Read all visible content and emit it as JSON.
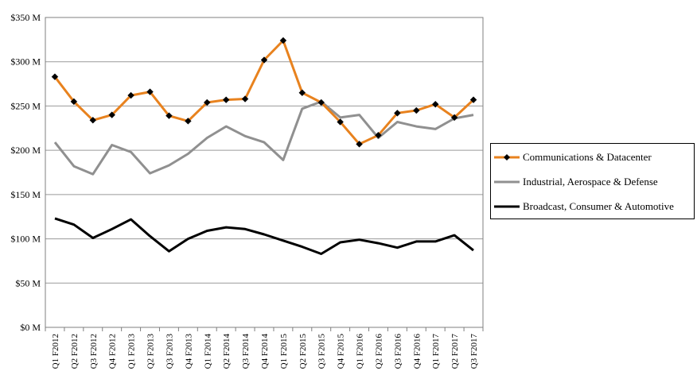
{
  "chart_data": {
    "type": "line",
    "title": "",
    "xlabel": "",
    "ylabel": "",
    "ylim": [
      0,
      350
    ],
    "y_ticks": [
      "$0 M",
      "$50 M",
      "$100 M",
      "$150 M",
      "$200 M",
      "$250 M",
      "$300 M",
      "$350 M"
    ],
    "y_tick_values": [
      0,
      50,
      100,
      150,
      200,
      250,
      300,
      350
    ],
    "grid": "horizontal",
    "legend_position": "right",
    "categories": [
      "Q1 F2012",
      "Q2 F2012",
      "Q3 F2012",
      "Q4 F2012",
      "Q1 F2013",
      "Q2 F2013",
      "Q3 F2013",
      "Q4 F2013",
      "Q1 F2014",
      "Q2 F2014",
      "Q3 F2014",
      "Q4 F2014",
      "Q1 F2015",
      "Q2 F2015",
      "Q3 F2015",
      "Q4 F2015",
      "Q1 F2016",
      "Q2 F2016",
      "Q3 F2016",
      "Q4 F2016",
      "Q1 F2017",
      "Q2 F2017",
      "Q3 F2017"
    ],
    "series": [
      {
        "name": "Communications & Datacenter",
        "color": "#E8821E",
        "marker": "diamond",
        "values": [
          283,
          255,
          234,
          240,
          262,
          266,
          239,
          233,
          254,
          257,
          258,
          302,
          324,
          265,
          254,
          232,
          207,
          217,
          242,
          245,
          252,
          237,
          257
        ]
      },
      {
        "name": "Industrial, Aerospace & Defense",
        "color": "#909090",
        "marker": "none",
        "values": [
          209,
          182,
          173,
          206,
          198,
          174,
          183,
          196,
          214,
          227,
          216,
          209,
          189,
          247,
          255,
          237,
          240,
          214,
          232,
          227,
          224,
          236,
          240
        ]
      },
      {
        "name": "Broadcast, Consumer & Automotive",
        "color": "#000000",
        "marker": "none",
        "values": [
          123,
          116,
          101,
          111,
          122,
          103,
          86,
          100,
          109,
          113,
          111,
          105,
          98,
          91,
          83,
          96,
          99,
          95,
          90,
          97,
          97,
          104,
          87
        ]
      }
    ]
  }
}
